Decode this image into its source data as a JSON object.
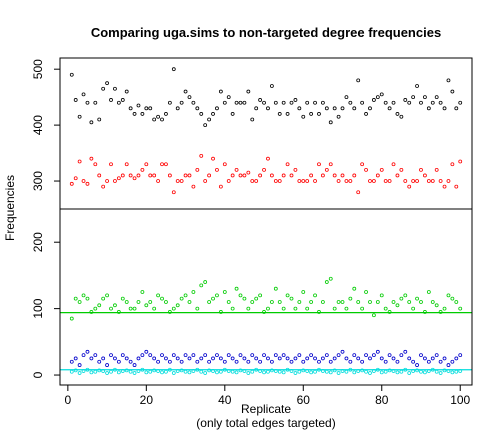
{
  "chart_data": {
    "type": "scatter",
    "title": "Comparing uga.sims to non-targeted degree frequencies",
    "xlabel": "Replicate",
    "xlabel_sub": "(only total edges targeted)",
    "ylabel": "Frequencies",
    "xlim": [
      -2,
      103
    ],
    "x_ticks": [
      0,
      20,
      40,
      60,
      80,
      100
    ],
    "panels": [
      {
        "name": "upper",
        "ylim": [
          250,
          520
        ],
        "y_ticks": [
          300,
          400,
          500
        ],
        "series": [
          {
            "color": "#000000",
            "x": [
              1,
              2,
              3,
              4,
              5,
              6,
              7,
              8,
              9,
              10,
              11,
              12,
              13,
              14,
              15,
              16,
              17,
              18,
              19,
              20,
              21,
              22,
              23,
              24,
              25,
              26,
              27,
              28,
              29,
              30,
              31,
              32,
              33,
              34,
              35,
              36,
              37,
              38,
              39,
              40,
              41,
              42,
              43,
              44,
              45,
              46,
              47,
              48,
              49,
              50,
              51,
              52,
              53,
              54,
              55,
              56,
              57,
              58,
              59,
              60,
              61,
              62,
              63,
              64,
              65,
              66,
              67,
              68,
              69,
              70,
              71,
              72,
              73,
              74,
              75,
              76,
              77,
              78,
              79,
              80,
              81,
              82,
              83,
              84,
              85,
              86,
              87,
              88,
              89,
              90,
              91,
              92,
              93,
              94,
              95,
              96,
              97,
              98,
              99,
              100
            ],
            "y": [
              490,
              445,
              415,
              455,
              440,
              405,
              440,
              410,
              465,
              475,
              445,
              465,
              440,
              445,
              460,
              430,
              420,
              435,
              420,
              430,
              430,
              410,
              415,
              410,
              420,
              440,
              500,
              430,
              440,
              460,
              450,
              440,
              430,
              420,
              400,
              410,
              420,
              430,
              460,
              440,
              450,
              420,
              440,
              440,
              440,
              460,
              410,
              430,
              445,
              440,
              430,
              470,
              440,
              420,
              440,
              420,
              440,
              445,
              430,
              415,
              440,
              420,
              440,
              420,
              440,
              430,
              405,
              430,
              415,
              430,
              450,
              440,
              430,
              480,
              440,
              420,
              430,
              445,
              450,
              455,
              440,
              430,
              440,
              420,
              415,
              445,
              440,
              450,
              470,
              440,
              450,
              430,
              440,
              450,
              440,
              430,
              480,
              460,
              430,
              440
            ]
          },
          {
            "color": "#ff0000",
            "x": [
              1,
              2,
              3,
              4,
              5,
              6,
              7,
              8,
              9,
              10,
              11,
              12,
              13,
              14,
              15,
              16,
              17,
              18,
              19,
              20,
              21,
              22,
              23,
              24,
              25,
              26,
              27,
              28,
              29,
              30,
              31,
              32,
              33,
              34,
              35,
              36,
              37,
              38,
              39,
              40,
              41,
              42,
              43,
              44,
              45,
              46,
              47,
              48,
              49,
              50,
              51,
              52,
              53,
              54,
              55,
              56,
              57,
              58,
              59,
              60,
              61,
              62,
              63,
              64,
              65,
              66,
              67,
              68,
              69,
              70,
              71,
              72,
              73,
              74,
              75,
              76,
              77,
              78,
              79,
              80,
              81,
              82,
              83,
              84,
              85,
              86,
              87,
              88,
              89,
              90,
              91,
              92,
              93,
              94,
              95,
              96,
              97,
              98,
              99,
              100
            ],
            "y": [
              295,
              305,
              335,
              300,
              295,
              340,
              330,
              310,
              290,
              300,
              330,
              300,
              305,
              310,
              330,
              310,
              305,
              310,
              320,
              330,
              310,
              310,
              300,
              330,
              330,
              310,
              280,
              300,
              300,
              310,
              310,
              290,
              320,
              345,
              300,
              310,
              340,
              320,
              290,
              330,
              300,
              310,
              320,
              310,
              310,
              315,
              300,
              300,
              310,
              320,
              340,
              310,
              300,
              300,
              310,
              330,
              310,
              320,
              300,
              300,
              300,
              310,
              300,
              330,
              310,
              320,
              330,
              310,
              300,
              310,
              300,
              300,
              310,
              280,
              330,
              320,
              300,
              300,
              310,
              320,
              300,
              300,
              330,
              310,
              320,
              300,
              290,
              300,
              300,
              320,
              310,
              300,
              300,
              320,
              300,
              290,
              300,
              330,
              290,
              335
            ]
          }
        ]
      },
      {
        "name": "lower",
        "ylim": [
          -15,
          250
        ],
        "y_ticks": [
          0,
          100,
          200
        ],
        "hlines": [
          {
            "y": 94,
            "color": "#00cc00"
          },
          {
            "y": 8,
            "color": "#00dddd"
          }
        ],
        "series": [
          {
            "color": "#00cc00",
            "x": [
              1,
              2,
              3,
              4,
              5,
              6,
              7,
              8,
              9,
              10,
              11,
              12,
              13,
              14,
              15,
              16,
              17,
              18,
              19,
              20,
              21,
              22,
              23,
              24,
              25,
              26,
              27,
              28,
              29,
              30,
              31,
              32,
              33,
              34,
              35,
              36,
              37,
              38,
              39,
              40,
              41,
              42,
              43,
              44,
              45,
              46,
              47,
              48,
              49,
              50,
              51,
              52,
              53,
              54,
              55,
              56,
              57,
              58,
              59,
              60,
              61,
              62,
              63,
              64,
              65,
              66,
              67,
              68,
              69,
              70,
              71,
              72,
              73,
              74,
              75,
              76,
              77,
              78,
              79,
              80,
              81,
              82,
              83,
              84,
              85,
              86,
              87,
              88,
              89,
              90,
              91,
              92,
              93,
              94,
              95,
              96,
              97,
              98,
              99,
              100
            ],
            "y": [
              85,
              115,
              110,
              120,
              115,
              95,
              100,
              105,
              115,
              120,
              100,
              105,
              95,
              115,
              110,
              100,
              100,
              110,
              125,
              105,
              110,
              100,
              120,
              115,
              110,
              95,
              100,
              105,
              115,
              120,
              110,
              125,
              100,
              135,
              140,
              110,
              115,
              120,
              95,
              125,
              110,
              100,
              130,
              120,
              115,
              100,
              110,
              115,
              120,
              95,
              100,
              110,
              130,
              110,
              100,
              120,
              115,
              100,
              110,
              125,
              100,
              110,
              120,
              95,
              110,
              140,
              145,
              100,
              110,
              110,
              100,
              115,
              130,
              110,
              100,
              125,
              110,
              90,
              110,
              120,
              100,
              95,
              110,
              105,
              115,
              120,
              110,
              100,
              115,
              110,
              95,
              125,
              110,
              105,
              95,
              100,
              120,
              115,
              110,
              100
            ]
          },
          {
            "color": "#0000cc",
            "x": [
              1,
              2,
              3,
              4,
              5,
              6,
              7,
              8,
              9,
              10,
              11,
              12,
              13,
              14,
              15,
              16,
              17,
              18,
              19,
              20,
              21,
              22,
              23,
              24,
              25,
              26,
              27,
              28,
              29,
              30,
              31,
              32,
              33,
              34,
              35,
              36,
              37,
              38,
              39,
              40,
              41,
              42,
              43,
              44,
              45,
              46,
              47,
              48,
              49,
              50,
              51,
              52,
              53,
              54,
              55,
              56,
              57,
              58,
              59,
              60,
              61,
              62,
              63,
              64,
              65,
              66,
              67,
              68,
              69,
              70,
              71,
              72,
              73,
              74,
              75,
              76,
              77,
              78,
              79,
              80,
              81,
              82,
              83,
              84,
              85,
              86,
              87,
              88,
              89,
              90,
              91,
              92,
              93,
              94,
              95,
              96,
              97,
              98,
              99,
              100
            ],
            "y": [
              20,
              25,
              15,
              30,
              35,
              25,
              30,
              20,
              25,
              15,
              30,
              25,
              20,
              30,
              25,
              20,
              15,
              25,
              30,
              35,
              30,
              25,
              20,
              30,
              25,
              20,
              30,
              25,
              20,
              30,
              25,
              30,
              20,
              25,
              30,
              20,
              25,
              30,
              25,
              20,
              30,
              25,
              20,
              30,
              25,
              20,
              30,
              25,
              20,
              30,
              25,
              20,
              30,
              25,
              30,
              25,
              20,
              25,
              30,
              20,
              25,
              30,
              25,
              20,
              25,
              30,
              20,
              25,
              30,
              35,
              25,
              20,
              30,
              25,
              20,
              30,
              25,
              30,
              35,
              25,
              20,
              30,
              25,
              20,
              30,
              35,
              25,
              20,
              15,
              30,
              25,
              20,
              25,
              30,
              20,
              25,
              15,
              20,
              25,
              30
            ]
          },
          {
            "color": "#00dddd",
            "x": [
              1,
              2,
              3,
              4,
              5,
              6,
              7,
              8,
              9,
              10,
              11,
              12,
              13,
              14,
              15,
              16,
              17,
              18,
              19,
              20,
              21,
              22,
              23,
              24,
              25,
              26,
              27,
              28,
              29,
              30,
              31,
              32,
              33,
              34,
              35,
              36,
              37,
              38,
              39,
              40,
              41,
              42,
              43,
              44,
              45,
              46,
              47,
              48,
              49,
              50,
              51,
              52,
              53,
              54,
              55,
              56,
              57,
              58,
              59,
              60,
              61,
              62,
              63,
              64,
              65,
              66,
              67,
              68,
              69,
              70,
              71,
              72,
              73,
              74,
              75,
              76,
              77,
              78,
              79,
              80,
              81,
              82,
              83,
              84,
              85,
              86,
              87,
              88,
              89,
              90,
              91,
              92,
              93,
              94,
              95,
              96,
              97,
              98,
              99,
              100
            ],
            "y": [
              5,
              7,
              3,
              6,
              8,
              4,
              5,
              7,
              6,
              3,
              5,
              8,
              4,
              6,
              7,
              5,
              3,
              6,
              8,
              4,
              5,
              7,
              6,
              4,
              5,
              8,
              3,
              6,
              7,
              5,
              4,
              6,
              8,
              5,
              3,
              7,
              6,
              4,
              5,
              8,
              6,
              5,
              4,
              7,
              6,
              3,
              5,
              8,
              6,
              4,
              5,
              7,
              6,
              5,
              4,
              8,
              6,
              3,
              5,
              7,
              6,
              4,
              5,
              8,
              6,
              5,
              4,
              7,
              3,
              6,
              5,
              8,
              4,
              6,
              7,
              5,
              3,
              6,
              8,
              4,
              5,
              7,
              6,
              4,
              5,
              8,
              3,
              6,
              7,
              5,
              4,
              6,
              8,
              5,
              3,
              7,
              6,
              4,
              5,
              6
            ]
          }
        ]
      }
    ]
  }
}
